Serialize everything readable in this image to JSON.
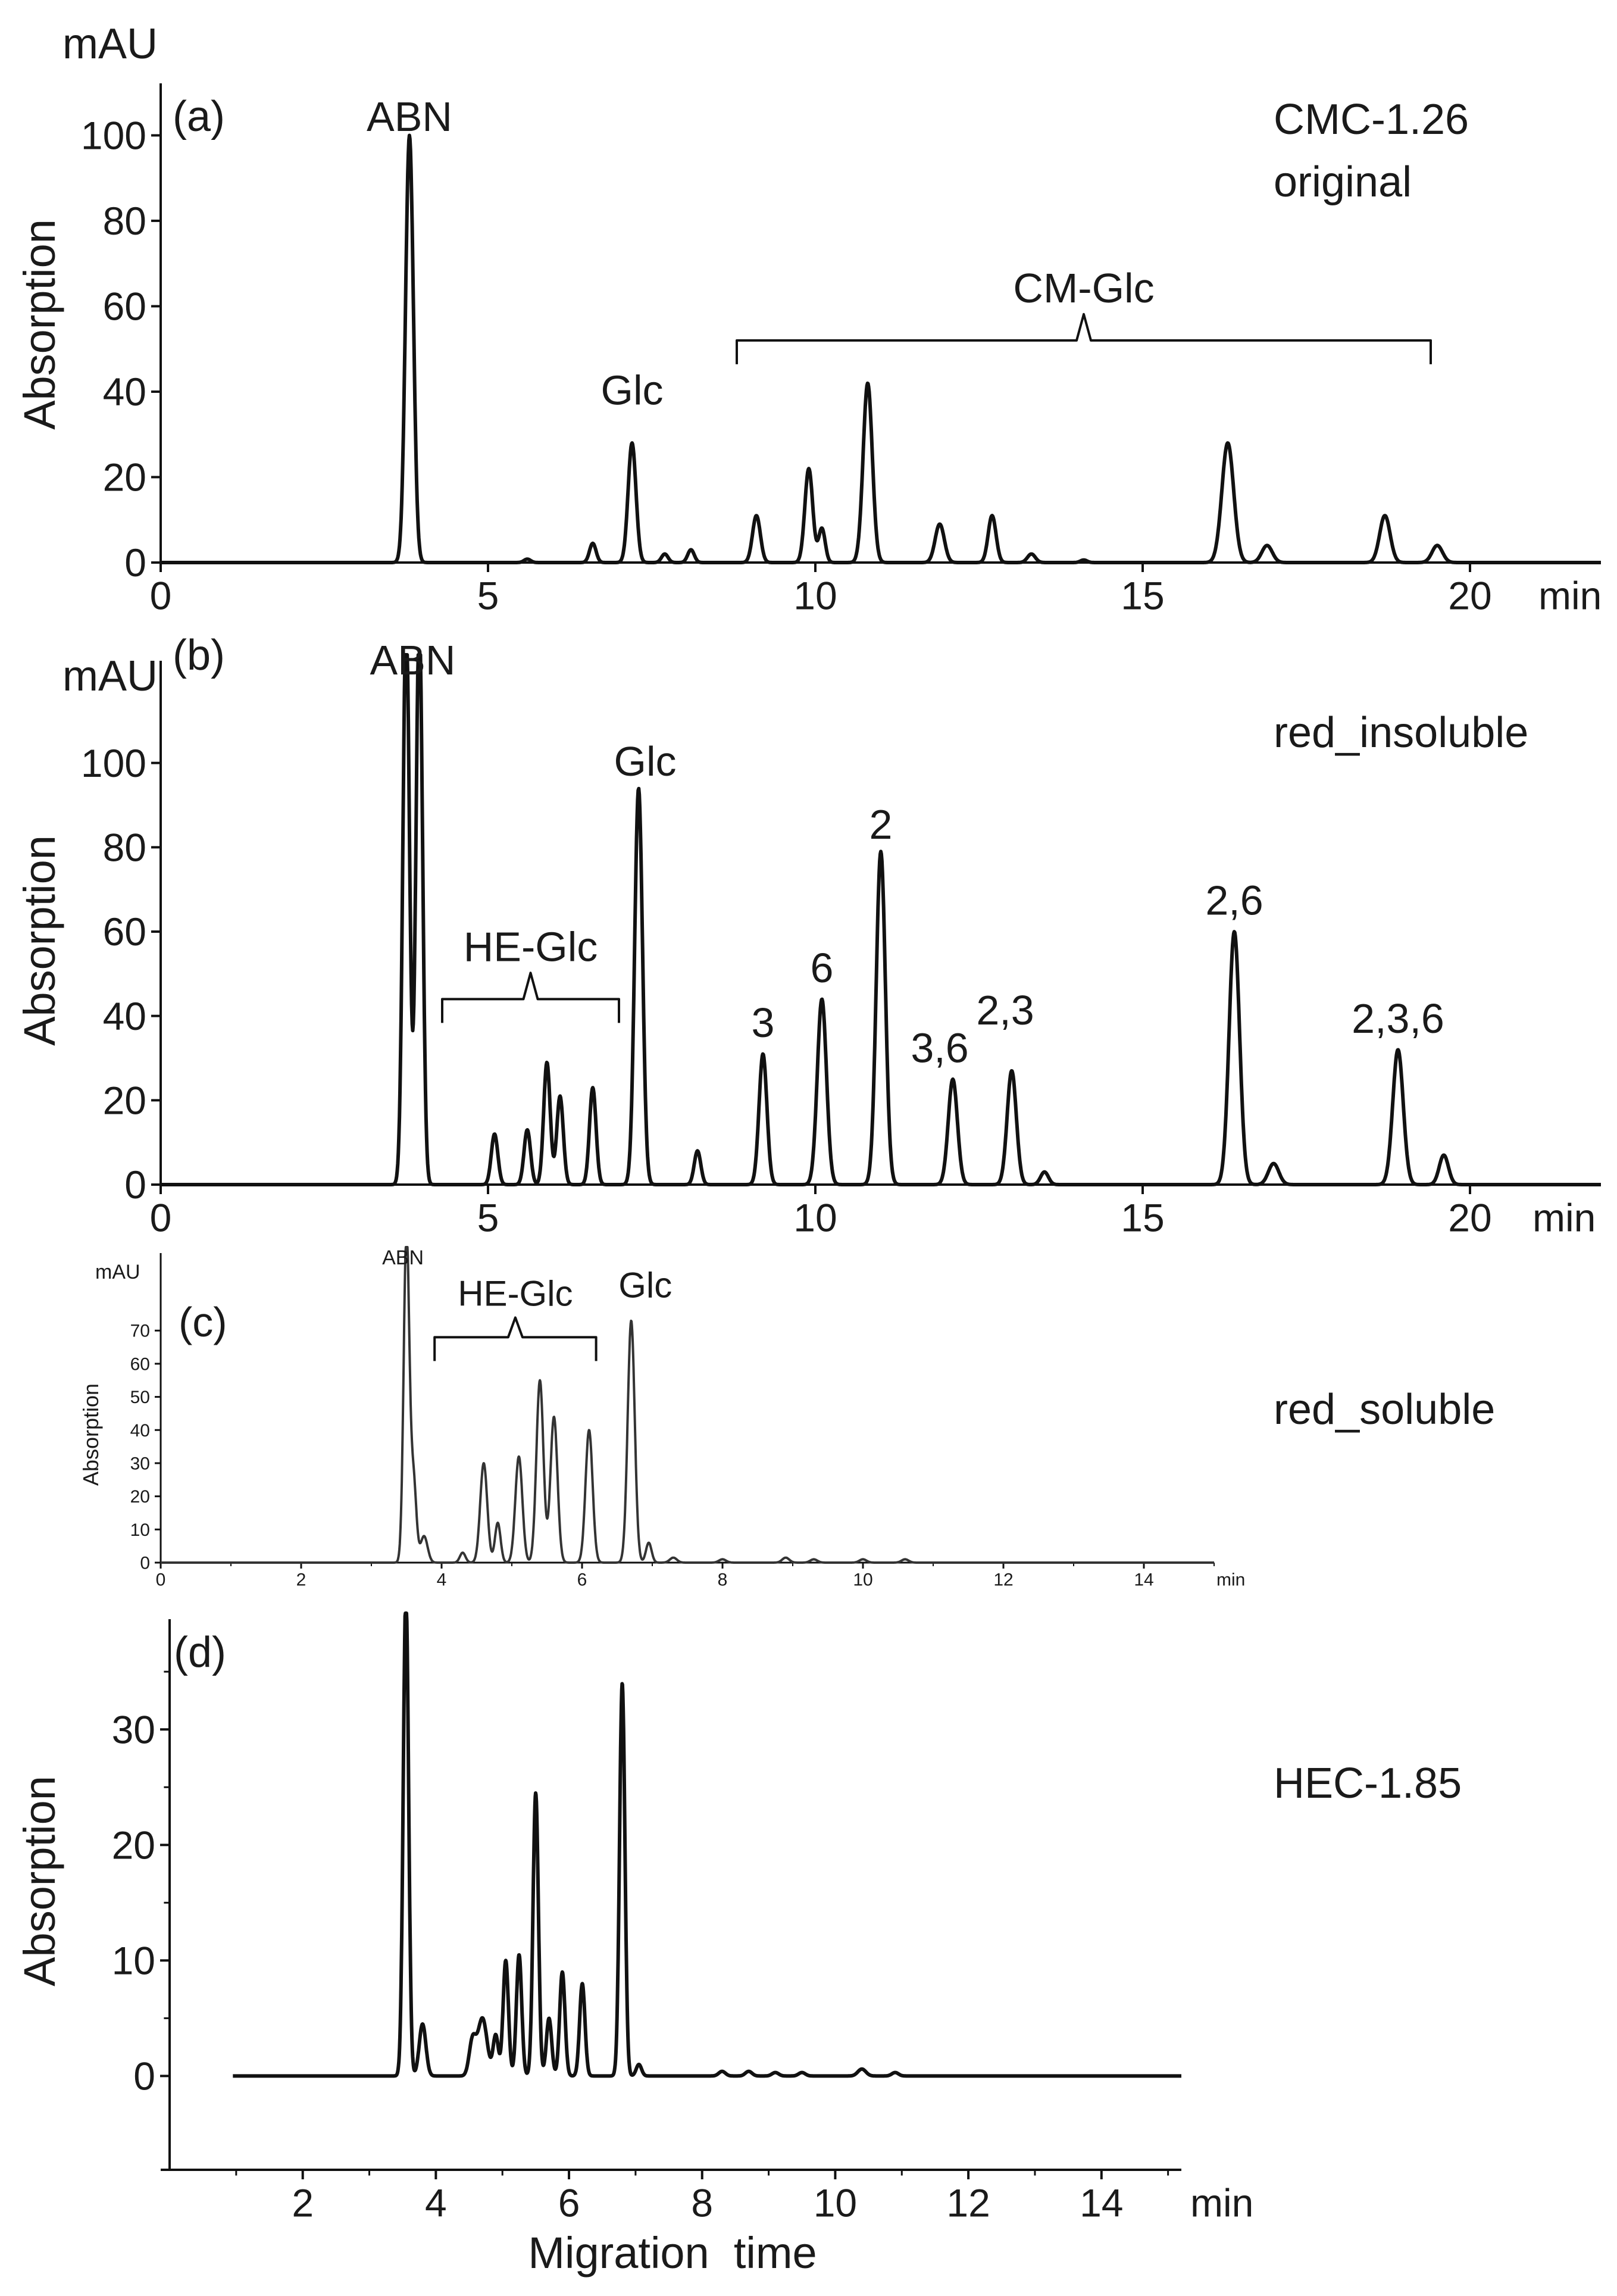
{
  "chart_data": [
    {
      "type": "line",
      "panel_label": "(a)",
      "sample": [
        "CMC-1.26",
        "original"
      ],
      "unit_label": "mAU",
      "ylabel": "Absorption",
      "xlabel": "",
      "x_unit": "min",
      "xlim": [
        0,
        22
      ],
      "ylim": [
        0,
        108
      ],
      "x_ticks": [
        0,
        5,
        10,
        15,
        20
      ],
      "y_ticks": [
        0,
        20,
        40,
        60,
        80,
        100
      ],
      "peaks": [
        {
          "x": 3.8,
          "y": 100,
          "w": 0.06
        },
        {
          "x": 5.6,
          "y": 0.8,
          "w": 0.05
        },
        {
          "x": 6.6,
          "y": 4.5,
          "w": 0.05
        },
        {
          "x": 7.2,
          "y": 28,
          "w": 0.06
        },
        {
          "x": 7.7,
          "y": 2,
          "w": 0.05
        },
        {
          "x": 8.1,
          "y": 3,
          "w": 0.05
        },
        {
          "x": 9.1,
          "y": 11,
          "w": 0.06
        },
        {
          "x": 9.9,
          "y": 22,
          "w": 0.06
        },
        {
          "x": 10.1,
          "y": 8,
          "w": 0.05
        },
        {
          "x": 10.8,
          "y": 42,
          "w": 0.07
        },
        {
          "x": 11.9,
          "y": 9,
          "w": 0.07
        },
        {
          "x": 12.7,
          "y": 11,
          "w": 0.06
        },
        {
          "x": 13.3,
          "y": 2,
          "w": 0.06
        },
        {
          "x": 14.1,
          "y": 0.6,
          "w": 0.05
        },
        {
          "x": 16.3,
          "y": 28,
          "w": 0.09
        },
        {
          "x": 16.9,
          "y": 4,
          "w": 0.08
        },
        {
          "x": 18.7,
          "y": 11,
          "w": 0.08
        },
        {
          "x": 19.5,
          "y": 4,
          "w": 0.08
        }
      ],
      "annotations": [
        {
          "text": "ABN",
          "x": 3.8,
          "y": 101
        },
        {
          "text": "Glc",
          "x": 7.2,
          "y": 37
        }
      ],
      "brackets": [
        {
          "text": "CM-Glc",
          "x1": 8.8,
          "x2": 19.4,
          "y": 52
        }
      ]
    },
    {
      "type": "line",
      "panel_label": "(b)",
      "sample": [
        "red_insoluble"
      ],
      "unit_label": "mAU",
      "ylabel": "Absorption",
      "xlabel": "",
      "x_unit": "min",
      "xlim": [
        0,
        22
      ],
      "ylim": [
        0,
        120
      ],
      "x_ticks": [
        0,
        5,
        10,
        15,
        20
      ],
      "y_ticks": [
        0,
        20,
        40,
        60,
        80,
        100
      ],
      "peaks": [
        {
          "x": 3.75,
          "y": 135,
          "w": 0.05
        },
        {
          "x": 3.95,
          "y": 135,
          "w": 0.05
        },
        {
          "x": 5.1,
          "y": 12,
          "w": 0.05
        },
        {
          "x": 5.6,
          "y": 13,
          "w": 0.05
        },
        {
          "x": 5.9,
          "y": 29,
          "w": 0.05
        },
        {
          "x": 6.1,
          "y": 21,
          "w": 0.05
        },
        {
          "x": 6.6,
          "y": 23,
          "w": 0.05
        },
        {
          "x": 7.3,
          "y": 94,
          "w": 0.06
        },
        {
          "x": 8.2,
          "y": 8,
          "w": 0.05
        },
        {
          "x": 9.2,
          "y": 31,
          "w": 0.06
        },
        {
          "x": 10.1,
          "y": 44,
          "w": 0.07
        },
        {
          "x": 11.0,
          "y": 79,
          "w": 0.07
        },
        {
          "x": 12.1,
          "y": 25,
          "w": 0.07
        },
        {
          "x": 13.0,
          "y": 27,
          "w": 0.07
        },
        {
          "x": 13.5,
          "y": 3,
          "w": 0.06
        },
        {
          "x": 16.4,
          "y": 60,
          "w": 0.08
        },
        {
          "x": 17.0,
          "y": 5,
          "w": 0.08
        },
        {
          "x": 18.9,
          "y": 32,
          "w": 0.08
        },
        {
          "x": 19.6,
          "y": 7,
          "w": 0.07
        }
      ],
      "annotations": [
        {
          "text": "ABN",
          "x": 3.85,
          "y": 121
        },
        {
          "text": "Glc",
          "x": 7.4,
          "y": 97
        },
        {
          "text": "3",
          "x": 9.2,
          "y": 35
        },
        {
          "text": "6",
          "x": 10.1,
          "y": 48
        },
        {
          "text": "2",
          "x": 11.0,
          "y": 82
        },
        {
          "text": "3,6",
          "x": 11.9,
          "y": 29
        },
        {
          "text": "2,3",
          "x": 12.9,
          "y": 38
        },
        {
          "text": "2,6",
          "x": 16.4,
          "y": 64
        },
        {
          "text": "2,3,6",
          "x": 18.9,
          "y": 36
        }
      ],
      "brackets": [
        {
          "text": "HE-Glc",
          "x1": 4.3,
          "x2": 7.0,
          "y": 44
        }
      ]
    },
    {
      "type": "line",
      "panel_label": "(c)",
      "sample": [
        "red_soluble"
      ],
      "unit_label": "mAU",
      "ylabel": "Absorption",
      "xlabel": "",
      "x_unit": "min",
      "xlim": [
        0,
        15
      ],
      "ylim": [
        0,
        88
      ],
      "x_ticks": [
        0,
        2,
        4,
        6,
        8,
        10,
        12,
        14
      ],
      "y_ticks": [
        0,
        10,
        20,
        30,
        40,
        50,
        60,
        70
      ],
      "peaks": [
        {
          "x": 3.5,
          "y": 100,
          "w": 0.04
        },
        {
          "x": 3.6,
          "y": 25,
          "w": 0.04
        },
        {
          "x": 3.75,
          "y": 8,
          "w": 0.05
        },
        {
          "x": 4.3,
          "y": 3,
          "w": 0.04
        },
        {
          "x": 4.6,
          "y": 30,
          "w": 0.05
        },
        {
          "x": 4.8,
          "y": 12,
          "w": 0.04
        },
        {
          "x": 5.1,
          "y": 32,
          "w": 0.05
        },
        {
          "x": 5.4,
          "y": 55,
          "w": 0.05
        },
        {
          "x": 5.6,
          "y": 44,
          "w": 0.05
        },
        {
          "x": 6.1,
          "y": 40,
          "w": 0.05
        },
        {
          "x": 6.7,
          "y": 73,
          "w": 0.05
        },
        {
          "x": 6.95,
          "y": 6,
          "w": 0.04
        },
        {
          "x": 7.3,
          "y": 1.5,
          "w": 0.05
        },
        {
          "x": 8.0,
          "y": 1,
          "w": 0.05
        },
        {
          "x": 8.9,
          "y": 1.5,
          "w": 0.05
        },
        {
          "x": 9.3,
          "y": 1,
          "w": 0.05
        },
        {
          "x": 10.0,
          "y": 1,
          "w": 0.05
        },
        {
          "x": 10.6,
          "y": 1,
          "w": 0.05
        }
      ],
      "annotations": [
        {
          "text": "ABN",
          "x": 3.45,
          "y": 90
        },
        {
          "text": "Glc",
          "x": 6.9,
          "y": 80
        }
      ],
      "brackets": [
        {
          "text": "HE-Glc",
          "x1": 3.9,
          "x2": 6.2,
          "y": 68
        }
      ]
    },
    {
      "type": "line",
      "panel_label": "(d)",
      "sample": [
        "HEC-1.85"
      ],
      "unit_label": "",
      "ylabel": "Absorption",
      "xlabel": "Migration  time",
      "x_unit": "min",
      "xlim": [
        0,
        15.2
      ],
      "ylim": [
        -4,
        38
      ],
      "x_ticks": [
        2,
        4,
        6,
        8,
        10,
        12,
        14
      ],
      "y_ticks": [
        0,
        10,
        20,
        30
      ],
      "peaks": [
        {
          "x": 3.55,
          "y": 42,
          "w": 0.04
        },
        {
          "x": 3.8,
          "y": 4.5,
          "w": 0.05
        },
        {
          "x": 4.55,
          "y": 3,
          "w": 0.05
        },
        {
          "x": 4.7,
          "y": 5,
          "w": 0.07
        },
        {
          "x": 4.9,
          "y": 3.5,
          "w": 0.04
        },
        {
          "x": 5.05,
          "y": 10,
          "w": 0.04
        },
        {
          "x": 5.25,
          "y": 10.5,
          "w": 0.04
        },
        {
          "x": 5.5,
          "y": 24.5,
          "w": 0.04
        },
        {
          "x": 5.7,
          "y": 5,
          "w": 0.04
        },
        {
          "x": 5.9,
          "y": 9,
          "w": 0.04
        },
        {
          "x": 6.2,
          "y": 8,
          "w": 0.04
        },
        {
          "x": 6.8,
          "y": 34,
          "w": 0.04
        },
        {
          "x": 7.05,
          "y": 1,
          "w": 0.04
        },
        {
          "x": 8.3,
          "y": 0.4,
          "w": 0.05
        },
        {
          "x": 8.7,
          "y": 0.4,
          "w": 0.05
        },
        {
          "x": 9.1,
          "y": 0.3,
          "w": 0.05
        },
        {
          "x": 9.5,
          "y": 0.3,
          "w": 0.05
        },
        {
          "x": 10.4,
          "y": 0.6,
          "w": 0.06
        },
        {
          "x": 10.9,
          "y": 0.3,
          "w": 0.05
        }
      ],
      "annotations": [],
      "brackets": []
    }
  ]
}
